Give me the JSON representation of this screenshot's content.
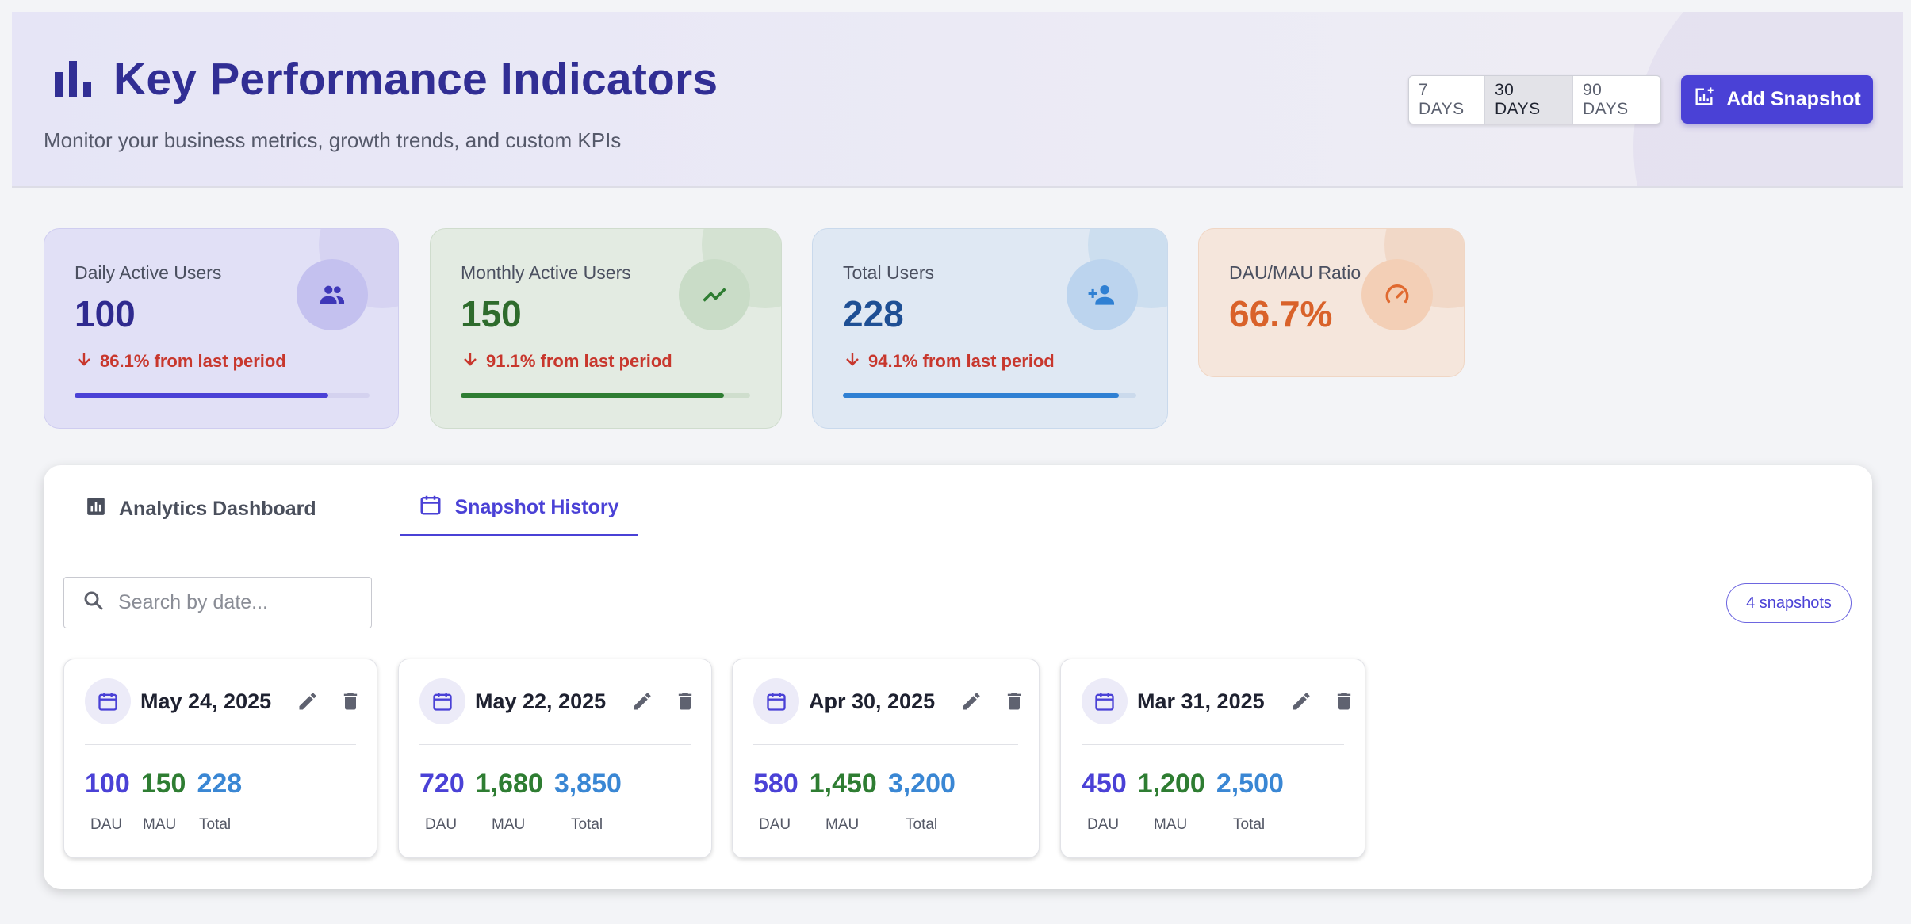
{
  "header": {
    "title": "Key Performance Indicators",
    "subtitle": "Monitor your business metrics, growth trends, and custom KPIs",
    "ranges": [
      "7 DAYS",
      "30 DAYS",
      "90 DAYS"
    ],
    "active_range": "30 DAYS",
    "add_button": "Add Snapshot"
  },
  "kpis": {
    "dau": {
      "label": "Daily Active Users",
      "value": "100",
      "trend": "86.1% from last period",
      "progress_percent": 86
    },
    "mau": {
      "label": "Monthly Active Users",
      "value": "150",
      "trend": "91.1% from last period",
      "progress_percent": 91
    },
    "total": {
      "label": "Total Users",
      "value": "228",
      "trend": "94.1% from last period",
      "progress_percent": 94
    },
    "ratio": {
      "label": "DAU/MAU Ratio",
      "value": "66.7%"
    }
  },
  "tabs": {
    "analytics": "Analytics Dashboard",
    "history": "Snapshot History",
    "active": "history"
  },
  "search": {
    "placeholder": "Search by date..."
  },
  "snapshot_count": "4 snapshots",
  "snapshots": [
    {
      "date": "May 24, 2025",
      "dau": "100",
      "mau": "150",
      "total": "228"
    },
    {
      "date": "May 22, 2025",
      "dau": "720",
      "mau": "1,680",
      "total": "3,850"
    },
    {
      "date": "Apr 30, 2025",
      "dau": "580",
      "mau": "1,450",
      "total": "3,200"
    },
    {
      "date": "Mar 31, 2025",
      "dau": "450",
      "mau": "1,200",
      "total": "2,500"
    }
  ],
  "snapshot_labels": {
    "dau": "DAU",
    "mau": "MAU",
    "total": "Total"
  },
  "colors": {
    "primary": "#4a41d6",
    "mau_green": "#2e7d32",
    "total_blue": "#2f80d3",
    "ratio_orange": "#d9622a",
    "trend_down": "#c8372d"
  }
}
